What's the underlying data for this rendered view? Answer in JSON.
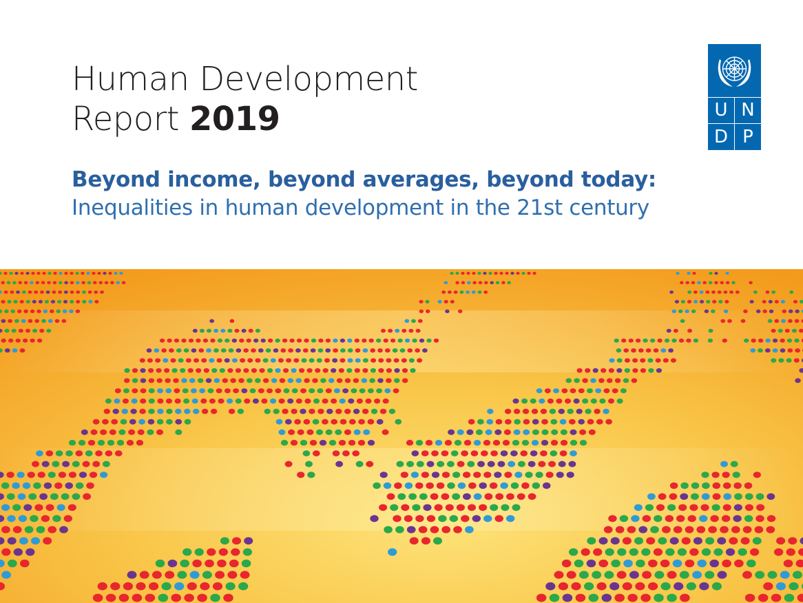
{
  "cover": {
    "title_line1": "Human Development",
    "title_line2_prefix": "Report",
    "title_year": "2019",
    "subtitle_main": "Beyond income, beyond averages, beyond today:",
    "subtitle_sub": "Inequalities in human development in the 21st century"
  },
  "logo": {
    "letters": [
      "U",
      "N",
      "D",
      "P"
    ],
    "emblem_icon": "un-emblem-icon",
    "background_color": "#0468b1"
  },
  "artwork": {
    "description_icon": "dotted-globe-icon",
    "background_colors": [
      "#f5a21c",
      "#fbd25a"
    ],
    "dot_colors": [
      "#e8262d",
      "#2aa84a",
      "#6a3590",
      "#2f9bd6"
    ]
  }
}
